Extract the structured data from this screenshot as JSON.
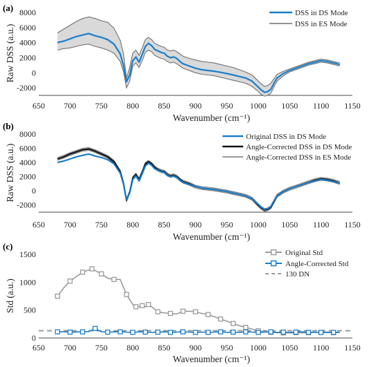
{
  "chart_data": [
    {
      "panel_label": "(a)",
      "type": "line",
      "xlabel": "Wavenumber (cm⁻¹)",
      "ylabel": "Raw DSS (a.u.)",
      "xlim": [
        650,
        1150
      ],
      "ylim": [
        -3000,
        8000
      ],
      "xticks": [
        650,
        700,
        750,
        800,
        850,
        900,
        950,
        1000,
        1050,
        1100,
        1150
      ],
      "yticks": [
        -2000,
        0,
        2000,
        4000,
        6000,
        8000
      ],
      "grid": false,
      "legend_position": "top-right",
      "x": [
        680,
        690,
        700,
        710,
        720,
        730,
        740,
        750,
        760,
        770,
        780,
        785,
        790,
        795,
        800,
        805,
        810,
        815,
        820,
        825,
        830,
        835,
        840,
        845,
        850,
        855,
        860,
        865,
        870,
        875,
        880,
        890,
        900,
        910,
        920,
        930,
        940,
        950,
        960,
        970,
        980,
        990,
        1000,
        1005,
        1010,
        1015,
        1020,
        1025,
        1030,
        1040,
        1050,
        1060,
        1070,
        1080,
        1090,
        1100,
        1110,
        1120,
        1130
      ],
      "series": [
        {
          "name": "DSS in DS Mode",
          "color": "#1a7dc8",
          "values": [
            4000,
            4200,
            4500,
            4800,
            5000,
            5200,
            4900,
            4700,
            4400,
            3800,
            2500,
            1000,
            -1200,
            -300,
            1600,
            2100,
            1400,
            2400,
            3500,
            3900,
            3600,
            3100,
            2900,
            2700,
            2600,
            2200,
            2000,
            2100,
            1900,
            1500,
            1200,
            900,
            600,
            400,
            300,
            200,
            50,
            -100,
            -300,
            -500,
            -700,
            -1100,
            -1900,
            -2300,
            -2600,
            -2500,
            -2200,
            -1400,
            -700,
            -100,
            300,
            600,
            900,
            1200,
            1400,
            1600,
            1500,
            1300,
            1100
          ]
        },
        {
          "name": "DSS in ES Mode",
          "color": "#6f6f6f",
          "band_upper": [
            5300,
            5800,
            6300,
            6800,
            7200,
            7400,
            7200,
            6900,
            6700,
            5900,
            4300,
            2600,
            -700,
            700,
            2600,
            3000,
            2300,
            3300,
            4400,
            4700,
            4400,
            3900,
            3700,
            3500,
            3400,
            3000,
            2900,
            3000,
            2800,
            2500,
            2200,
            1900,
            1700,
            1500,
            1400,
            1300,
            1100,
            900,
            700,
            400,
            100,
            -300,
            -1100,
            -1500,
            -1800,
            -1700,
            -1400,
            -800,
            -200,
            200,
            500,
            800,
            1100,
            1400,
            1600,
            1800,
            1700,
            1500,
            1300
          ],
          "band_lower": [
            3000,
            3200,
            3300,
            3500,
            3700,
            3800,
            3500,
            3300,
            3000,
            2600,
            1500,
            200,
            -2000,
            -1100,
            900,
            1300,
            700,
            1600,
            2700,
            3000,
            2800,
            2300,
            2100,
            1900,
            1800,
            1500,
            1300,
            1400,
            1200,
            900,
            600,
            300,
            0,
            -200,
            -300,
            -400,
            -600,
            -800,
            -1000,
            -1200,
            -1400,
            -1800,
            -2500,
            -2900,
            -3100,
            -3000,
            -2700,
            -1900,
            -1100,
            -400,
            100,
            400,
            700,
            1000,
            1200,
            1400,
            1300,
            1100,
            900
          ]
        }
      ]
    },
    {
      "panel_label": "(b)",
      "type": "line",
      "xlabel": "Wavenumber (cm⁻¹)",
      "ylabel": "Raw DSS (a.u.)",
      "xlim": [
        650,
        1150
      ],
      "ylim": [
        -3000,
        8000
      ],
      "xticks": [
        650,
        700,
        750,
        800,
        850,
        900,
        950,
        1000,
        1050,
        1100,
        1150
      ],
      "yticks": [
        -2000,
        0,
        2000,
        4000,
        6000,
        8000
      ],
      "grid": false,
      "legend_position": "top-right",
      "x": [
        680,
        690,
        700,
        710,
        720,
        730,
        740,
        750,
        760,
        770,
        780,
        785,
        790,
        795,
        800,
        805,
        810,
        815,
        820,
        825,
        830,
        835,
        840,
        845,
        850,
        855,
        860,
        865,
        870,
        875,
        880,
        890,
        900,
        910,
        920,
        930,
        940,
        950,
        960,
        970,
        980,
        990,
        1000,
        1005,
        1010,
        1015,
        1020,
        1025,
        1030,
        1040,
        1050,
        1060,
        1070,
        1080,
        1090,
        1100,
        1110,
        1120,
        1130
      ],
      "series": [
        {
          "name": "Original DSS in DS Mode",
          "color": "#1a7dc8",
          "values": [
            4000,
            4200,
            4500,
            4800,
            5000,
            5200,
            4900,
            4700,
            4400,
            3800,
            2500,
            1000,
            -1200,
            -300,
            1600,
            2100,
            1400,
            2400,
            3500,
            3900,
            3600,
            3100,
            2900,
            2700,
            2600,
            2200,
            2000,
            2100,
            1900,
            1500,
            1200,
            900,
            600,
            400,
            300,
            200,
            50,
            -100,
            -300,
            -500,
            -700,
            -1100,
            -1900,
            -2300,
            -2600,
            -2500,
            -2200,
            -1400,
            -700,
            -100,
            300,
            600,
            900,
            1200,
            1400,
            1600,
            1500,
            1300,
            1100
          ]
        },
        {
          "name": "Angle-Corrected DSS in DS Mode",
          "color": "#111111",
          "values": [
            4500,
            4800,
            5200,
            5500,
            5800,
            5900,
            5600,
            5200,
            4800,
            4100,
            2700,
            1100,
            -1300,
            -200,
            1800,
            2300,
            1600,
            2600,
            3800,
            4100,
            3800,
            3300,
            3000,
            2800,
            2700,
            2300,
            2100,
            2200,
            2000,
            1600,
            1300,
            1000,
            600,
            400,
            300,
            200,
            50,
            -100,
            -300,
            -500,
            -700,
            -1100,
            -2000,
            -2400,
            -2700,
            -2600,
            -2300,
            -1500,
            -700,
            -100,
            300,
            600,
            900,
            1200,
            1500,
            1700,
            1600,
            1400,
            1100
          ]
        },
        {
          "name": "Angle-Corrected DSS in ES Mode",
          "color": "#7a7a7a",
          "band_upper": [
            4700,
            5000,
            5400,
            5700,
            6000,
            6100,
            5800,
            5400,
            5000,
            4300,
            2900,
            1300,
            -1100,
            0,
            2000,
            2500,
            1800,
            2800,
            4000,
            4300,
            4000,
            3500,
            3200,
            3000,
            2900,
            2500,
            2300,
            2400,
            2200,
            1800,
            1500,
            1200,
            800,
            600,
            500,
            400,
            250,
            100,
            -100,
            -300,
            -500,
            -900,
            -1800,
            -2200,
            -2500,
            -2400,
            -2100,
            -1300,
            -500,
            100,
            500,
            800,
            1100,
            1400,
            1700,
            1900,
            1800,
            1600,
            1300
          ],
          "band_lower": [
            4300,
            4600,
            5000,
            5300,
            5600,
            5700,
            5400,
            5000,
            4600,
            3900,
            2500,
            900,
            -1500,
            -400,
            1600,
            2100,
            1400,
            2400,
            3600,
            3900,
            3600,
            3100,
            2800,
            2600,
            2500,
            2100,
            1900,
            2000,
            1800,
            1400,
            1100,
            800,
            400,
            200,
            100,
            0,
            -150,
            -300,
            -500,
            -700,
            -900,
            -1300,
            -2200,
            -2600,
            -2900,
            -2800,
            -2500,
            -1700,
            -900,
            -300,
            100,
            400,
            700,
            1000,
            1300,
            1500,
            1400,
            1200,
            900
          ]
        }
      ]
    },
    {
      "panel_label": "(c)",
      "type": "line",
      "xlabel": "Wavenumber (cm⁻¹)",
      "ylabel": "Std (a.u.)",
      "xlim": [
        650,
        1150
      ],
      "ylim": [
        0,
        1500
      ],
      "xticks": [
        650,
        700,
        750,
        800,
        850,
        900,
        950,
        1000,
        1050,
        1100,
        1150
      ],
      "yticks": [
        0,
        500,
        1000,
        1500
      ],
      "grid": false,
      "legend_position": "top-right",
      "series": [
        {
          "name": "Original Std",
          "color": "#9a9a9a",
          "marker": "square",
          "x": [
            680,
            690,
            700,
            710,
            720,
            730,
            735,
            740,
            750,
            760,
            770,
            780,
            790,
            800,
            805,
            810,
            815,
            820,
            825,
            830,
            840,
            850,
            860,
            870,
            880,
            890,
            900,
            910,
            920,
            930,
            940,
            950,
            960,
            970,
            980,
            990,
            1000,
            1010,
            1020,
            1030,
            1040,
            1050,
            1060,
            1070,
            1080,
            1090,
            1100,
            1110,
            1120,
            1130
          ],
          "values": [
            750,
            900,
            1020,
            1100,
            1180,
            1220,
            1240,
            1210,
            1150,
            1070,
            1050,
            1050,
            780,
            600,
            560,
            560,
            580,
            560,
            600,
            560,
            470,
            450,
            440,
            430,
            480,
            480,
            470,
            440,
            420,
            380,
            340,
            300,
            260,
            220,
            190,
            160,
            130,
            110,
            100,
            95,
            90,
            90,
            95,
            90,
            95,
            100,
            100,
            95,
            95,
            100
          ]
        },
        {
          "name": "Angle-Corrected Std",
          "color": "#1a7dc8",
          "marker": "square",
          "x": [
            680,
            690,
            700,
            710,
            720,
            730,
            740,
            750,
            760,
            770,
            780,
            790,
            800,
            810,
            820,
            830,
            840,
            850,
            860,
            870,
            880,
            890,
            900,
            910,
            920,
            930,
            940,
            950,
            960,
            970,
            980,
            990,
            1000,
            1010,
            1020,
            1030,
            1040,
            1050,
            1060,
            1070,
            1080,
            1090,
            1100,
            1110,
            1120,
            1130
          ],
          "values": [
            110,
            112,
            105,
            108,
            110,
            115,
            170,
            110,
            105,
            108,
            110,
            105,
            100,
            110,
            105,
            100,
            105,
            110,
            100,
            105,
            110,
            105,
            100,
            105,
            100,
            105,
            110,
            100,
            105,
            100,
            110,
            105,
            100,
            105,
            110,
            100,
            105,
            100,
            105,
            110,
            100,
            105,
            100,
            105,
            100,
            105
          ]
        },
        {
          "name": "130 DN",
          "color": "#9a9a9a",
          "dashed": true,
          "x": [
            650,
            1150
          ],
          "values": [
            130,
            130
          ]
        }
      ]
    }
  ]
}
